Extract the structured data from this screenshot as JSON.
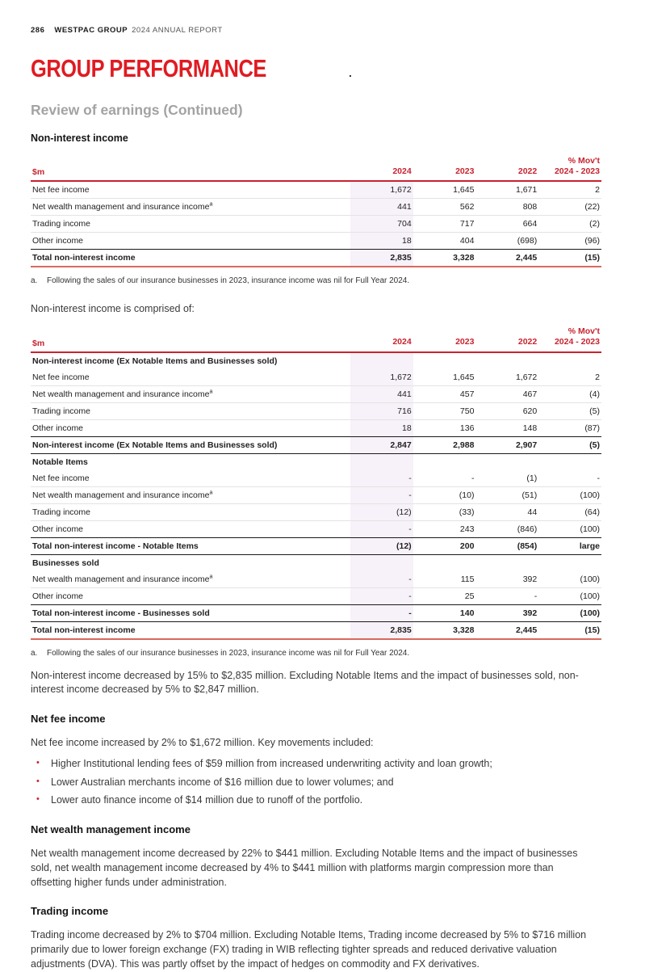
{
  "page_header": {
    "page_number": "286",
    "brand": "WESTPAC GROUP",
    "report_title": "2024 ANNUAL REPORT"
  },
  "title": "GROUP PERFORMANCE",
  "title_dot": ".",
  "subtitle": "Review of earnings (Continued)",
  "intro_heading": "Non-interest income",
  "colors": {
    "brand_red": "#e01b22",
    "table_header_red": "#c8232f",
    "table_bottom_rule": "#d9695f",
    "column_highlight": "#f7f1f9",
    "subtitle_gray": "#a3a3a3"
  },
  "tables": [
    {
      "name": "non-interest-income-summary-table",
      "columns": [
        "$m",
        "2024",
        "2023",
        "2022",
        "% Mov't\n2024 - 2023"
      ],
      "rows": [
        {
          "type": "data",
          "label": "Net fee income",
          "values": [
            "1,672",
            "1,645",
            "1,671",
            "2"
          ]
        },
        {
          "type": "data",
          "label": "Net wealth management and insurance income",
          "sup": "a",
          "values": [
            "441",
            "562",
            "808",
            "(22)"
          ]
        },
        {
          "type": "data",
          "label": "Trading income",
          "values": [
            "704",
            "717",
            "664",
            "(2)"
          ]
        },
        {
          "type": "data",
          "label": "Other income",
          "values": [
            "18",
            "404",
            "(698)",
            "(96)"
          ]
        },
        {
          "type": "total",
          "last": true,
          "label": "Total non-interest income",
          "values": [
            "2,835",
            "3,328",
            "2,445",
            "(15)"
          ]
        }
      ]
    },
    {
      "name": "non-interest-income-composition-table",
      "columns": [
        "$m",
        "2024",
        "2023",
        "2022",
        "% Mov't\n2024 - 2023"
      ],
      "rows": [
        {
          "type": "section",
          "label": "Non-interest income (Ex Notable Items and Businesses sold)",
          "values": [
            "",
            "",
            "",
            ""
          ]
        },
        {
          "type": "data",
          "label": "Net fee income",
          "values": [
            "1,672",
            "1,645",
            "1,672",
            "2"
          ]
        },
        {
          "type": "data",
          "label": "Net wealth management and insurance income",
          "sup": "a",
          "values": [
            "441",
            "457",
            "467",
            "(4)"
          ]
        },
        {
          "type": "data",
          "label": "Trading income",
          "values": [
            "716",
            "750",
            "620",
            "(5)"
          ]
        },
        {
          "type": "data",
          "label": "Other income",
          "values": [
            "18",
            "136",
            "148",
            "(87)"
          ]
        },
        {
          "type": "total",
          "label": "Non-interest income (Ex Notable Items and Businesses sold)",
          "values": [
            "2,847",
            "2,988",
            "2,907",
            "(5)"
          ]
        },
        {
          "type": "section",
          "label": "Notable Items",
          "values": [
            "",
            "",
            "",
            ""
          ]
        },
        {
          "type": "data",
          "label": "Net fee income",
          "values": [
            "-",
            "-",
            "(1)",
            "-"
          ]
        },
        {
          "type": "data",
          "label": "Net wealth management and insurance income",
          "sup": "a",
          "values": [
            "-",
            "(10)",
            "(51)",
            "(100)"
          ]
        },
        {
          "type": "data",
          "label": "Trading income",
          "values": [
            "(12)",
            "(33)",
            "44",
            "(64)"
          ]
        },
        {
          "type": "data",
          "label": "Other income",
          "values": [
            "-",
            "243",
            "(846)",
            "(100)"
          ]
        },
        {
          "type": "total",
          "light_first_value": true,
          "label": "Total non-interest income - Notable Items",
          "values": [
            "(12)",
            "200",
            "(854)",
            "large"
          ]
        },
        {
          "type": "section",
          "label": "Businesses sold",
          "values": [
            "",
            "",
            "",
            ""
          ]
        },
        {
          "type": "data",
          "label": "Net wealth management and insurance income",
          "sup": "a",
          "values": [
            "-",
            "115",
            "392",
            "(100)"
          ]
        },
        {
          "type": "data",
          "label": "Other income",
          "values": [
            "-",
            "25",
            "-",
            "(100)"
          ]
        },
        {
          "type": "total",
          "light_first_value": true,
          "label": "Total non-interest income - Businesses sold",
          "values": [
            "-",
            "140",
            "392",
            "(100)"
          ]
        },
        {
          "type": "total",
          "last": true,
          "label": "Total non-interest income",
          "values": [
            "2,835",
            "3,328",
            "2,445",
            "(15)"
          ]
        }
      ]
    }
  ],
  "footnote_1": {
    "marker": "a.",
    "text": "Following the sales of our insurance businesses in 2023, insurance income was nil for Full Year 2024."
  },
  "comprised_line": "Non-interest income is comprised of:",
  "footnote_2": {
    "marker": "a.",
    "text": "Following the sales of our insurance businesses in 2023, insurance income was nil for Full Year 2024."
  },
  "paragraphs": {
    "overview": "Non-interest income decreased by 15% to $2,835 million. Excluding Notable Items and the impact of businesses sold, non-interest income decreased by 5% to $2,847 million.",
    "net_fee_heading": "Net fee income",
    "net_fee_intro": "Net fee income increased by 2% to $1,672 million. Key movements included:",
    "net_fee_bullets": [
      "Higher Institutional lending fees of $59 million from increased underwriting activity and loan growth;",
      "Lower Australian merchants income of $16 million due to lower volumes; and",
      "Lower auto finance income of $14 million due to runoff of the portfolio."
    ],
    "wealth_heading": "Net wealth management income",
    "wealth_text": "Net wealth management income decreased by 22% to $441 million. Excluding Notable Items and the impact of businesses sold, net wealth management income decreased by 4% to $441 million with platforms margin compression more than offsetting higher funds under administration.",
    "trading_heading": "Trading income",
    "trading_text": "Trading income decreased by 2% to $704 million. Excluding Notable Items, Trading income decreased by 5% to $716 million primarily due to lower foreign exchange (FX) trading in WIB reflecting tighter spreads and reduced derivative valuation adjustments (DVA). This was partly offset by the impact of hedges on commodity and FX derivatives."
  }
}
